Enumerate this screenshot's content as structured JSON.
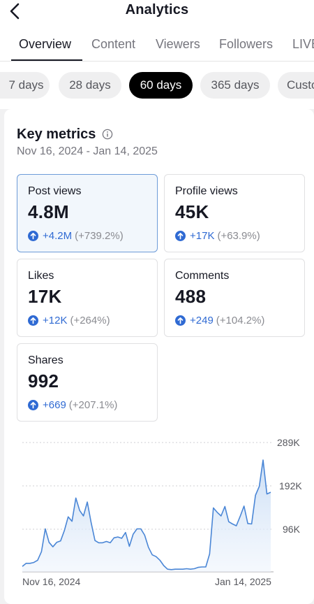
{
  "header": {
    "title": "Analytics",
    "back_icon": "chevron-left-icon"
  },
  "tabs": [
    {
      "label": "Overview",
      "active": true
    },
    {
      "label": "Content",
      "active": false
    },
    {
      "label": "Viewers",
      "active": false
    },
    {
      "label": "Followers",
      "active": false
    },
    {
      "label": "LIVE",
      "active": false
    }
  ],
  "periods": [
    {
      "label": "7 days",
      "active": false
    },
    {
      "label": "28 days",
      "active": false
    },
    {
      "label": "60 days",
      "active": true
    },
    {
      "label": "365 days",
      "active": false
    },
    {
      "label": "Custom",
      "active": false
    }
  ],
  "key_metrics": {
    "title": "Key metrics",
    "date_range": "Nov 16, 2024 - Jan 14, 2025",
    "info_icon": "info-icon",
    "items": [
      {
        "label": "Post views",
        "value": "4.8M",
        "change": "+4.2M",
        "pct": "(+739.2%)",
        "selected": true
      },
      {
        "label": "Profile views",
        "value": "45K",
        "change": "+17K",
        "pct": "(+63.9%)",
        "selected": false
      },
      {
        "label": "Likes",
        "value": "17K",
        "change": "+12K",
        "pct": "(+264%)",
        "selected": false
      },
      {
        "label": "Comments",
        "value": "488",
        "change": "+249",
        "pct": "(+104.2%)",
        "selected": false
      },
      {
        "label": "Shares",
        "value": "992",
        "change": "+669",
        "pct": "(+207.1%)",
        "selected": false
      }
    ]
  },
  "colors": {
    "accent": "#2f6ad3",
    "line": "#4a86d6",
    "fill": "#dce9f8"
  },
  "chart_data": {
    "type": "area",
    "x_tick_labels": [
      "Nov 16, 2024",
      "Jan 14, 2025"
    ],
    "y_tick_labels": [
      "289K",
      "192K",
      "96K"
    ],
    "ylim": [
      0,
      289000
    ],
    "grid": true,
    "series": [
      {
        "values": [
          12000,
          19000,
          19000,
          21000,
          26000,
          45000,
          96000,
          66000,
          56000,
          66000,
          69000,
          92000,
          123000,
          113000,
          165000,
          137000,
          125000,
          156000,
          110000,
          70000,
          65000,
          65000,
          68000,
          65000,
          76000,
          78000,
          75000,
          88000,
          57000,
          84000,
          96000,
          96000,
          82000,
          55000,
          38000,
          34000,
          26000,
          14000,
          6000,
          5000,
          6000,
          6000,
          6000,
          7000,
          6000,
          7000,
          10000,
          11000,
          11000,
          40000,
          143000,
          133000,
          125000,
          146000,
          112000,
          107000,
          103000,
          124000,
          147000,
          108000,
          107000,
          171000,
          191000,
          250000,
          174000,
          178000
        ]
      }
    ]
  }
}
